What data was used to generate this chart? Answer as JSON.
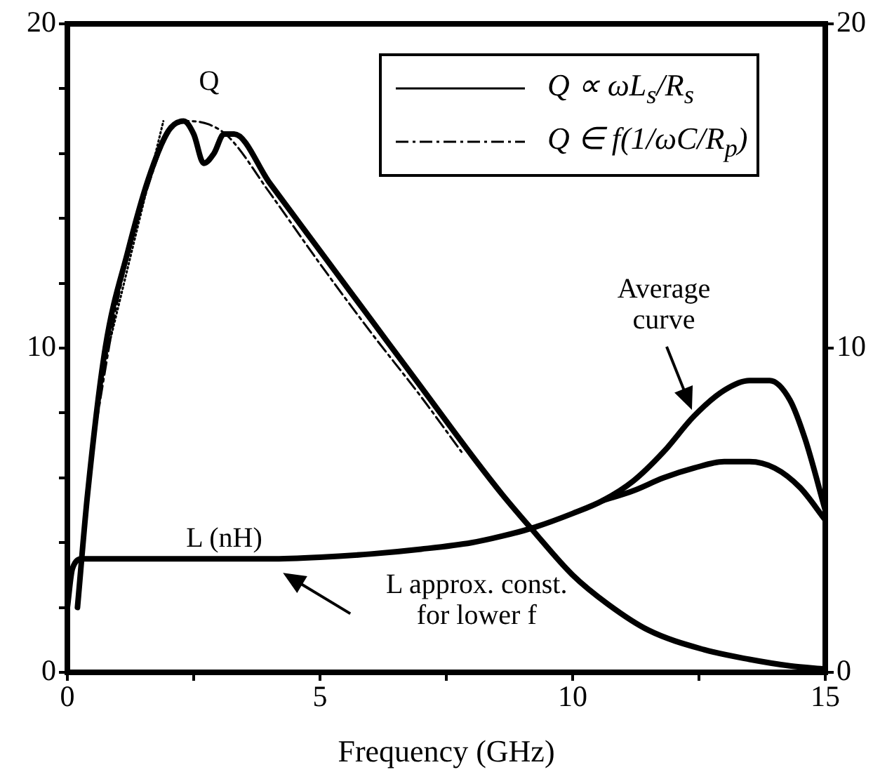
{
  "chart_data": {
    "type": "line",
    "xlabel": "Frequency (GHz)",
    "xlim": [
      0,
      15
    ],
    "xticks": [
      0,
      {
        "value": 2.5,
        "label": null
      },
      5,
      {
        "value": 7.5,
        "label": null
      },
      10,
      {
        "value": 12.5,
        "label": null
      },
      15
    ],
    "ylim": [
      0,
      20
    ],
    "yticks": [
      0,
      {
        "value": 2,
        "label": null
      },
      {
        "value": 4,
        "label": null
      },
      {
        "value": 6,
        "label": null
      },
      {
        "value": 8,
        "label": null
      },
      10,
      {
        "value": 12,
        "label": null
      },
      {
        "value": 14,
        "label": null
      },
      {
        "value": 16,
        "label": null
      },
      {
        "value": 18,
        "label": null
      },
      20
    ],
    "y2lim": [
      0,
      20
    ],
    "y2ticks": [
      0,
      10,
      20
    ],
    "grid": false,
    "legend": "top right",
    "marker": "none",
    "series": [
      {
        "name": "Q ∝ ωL$_{s}$/R$_{s}$",
        "color": "#000000",
        "line_style": "solid",
        "x": [
          0.2,
          0.4,
          0.75,
          1.2,
          1.6,
          2.0,
          2.3,
          2.5,
          2.7,
          2.9,
          3.1,
          3.3,
          4,
          5,
          6,
          7,
          8,
          8.6,
          9.2,
          10,
          10.7,
          11.5,
          12.6,
          13.5,
          14.3,
          15
        ],
        "values": [
          2.0,
          5.5,
          10,
          13,
          15.2,
          16.7,
          17.0,
          16.6,
          15.7,
          16.0,
          16.6,
          16.6,
          15.1,
          13.0,
          10.9,
          8.8,
          6.7,
          5.5,
          4.4,
          3.0,
          2.1,
          1.3,
          0.7,
          0.4,
          0.2,
          0.1
        ]
      },
      {
        "name": "Q ∈ f(1/ωC/R$_{p}$)",
        "color": "#000000",
        "line_style": "dashed",
        "x": [
          0.5,
          1,
          1.5,
          2,
          2.4,
          2.8,
          3.2,
          4,
          5,
          6,
          7,
          7.8
        ],
        "values": [
          7,
          11.5,
          14.5,
          16.6,
          17.0,
          16.9,
          16.5,
          14.8,
          12.6,
          10.5,
          8.5,
          6.8
        ]
      },
      {
        "color": "#000000",
        "line_style": "dotted",
        "x": [
          0.7,
          1.9
        ],
        "values": [
          9.3,
          17.0
        ]
      },
      {
        "color": "#000000",
        "line_style": "solid",
        "x": [
          0,
          0.1,
          0.3,
          1,
          2,
          3,
          4,
          5,
          6,
          7,
          8,
          8.6,
          9.2,
          10,
          10.6,
          11.2,
          11.8,
          12.4,
          13,
          13.5,
          13.9,
          14.3,
          14.6,
          15
        ],
        "values": [
          2.0,
          3.2,
          3.5,
          3.5,
          3.5,
          3.5,
          3.5,
          3.55,
          3.65,
          3.8,
          4.0,
          4.2,
          4.45,
          4.9,
          5.3,
          5.9,
          6.8,
          7.9,
          8.7,
          9.0,
          9.0,
          8.4,
          7.2,
          5.0
        ]
      },
      {
        "color": "#000000",
        "line_style": "solid",
        "x": [
          10.6,
          11.2,
          11.8,
          12.4,
          13,
          13.5,
          14,
          14.5,
          15
        ],
        "values": [
          5.3,
          5.6,
          6.0,
          6.3,
          6.5,
          6.5,
          6.3,
          5.7,
          4.7
        ]
      }
    ],
    "annotations": [
      "Q",
      "L (nH)",
      "Average curve",
      "L approx. const. for lower f"
    ]
  }
}
